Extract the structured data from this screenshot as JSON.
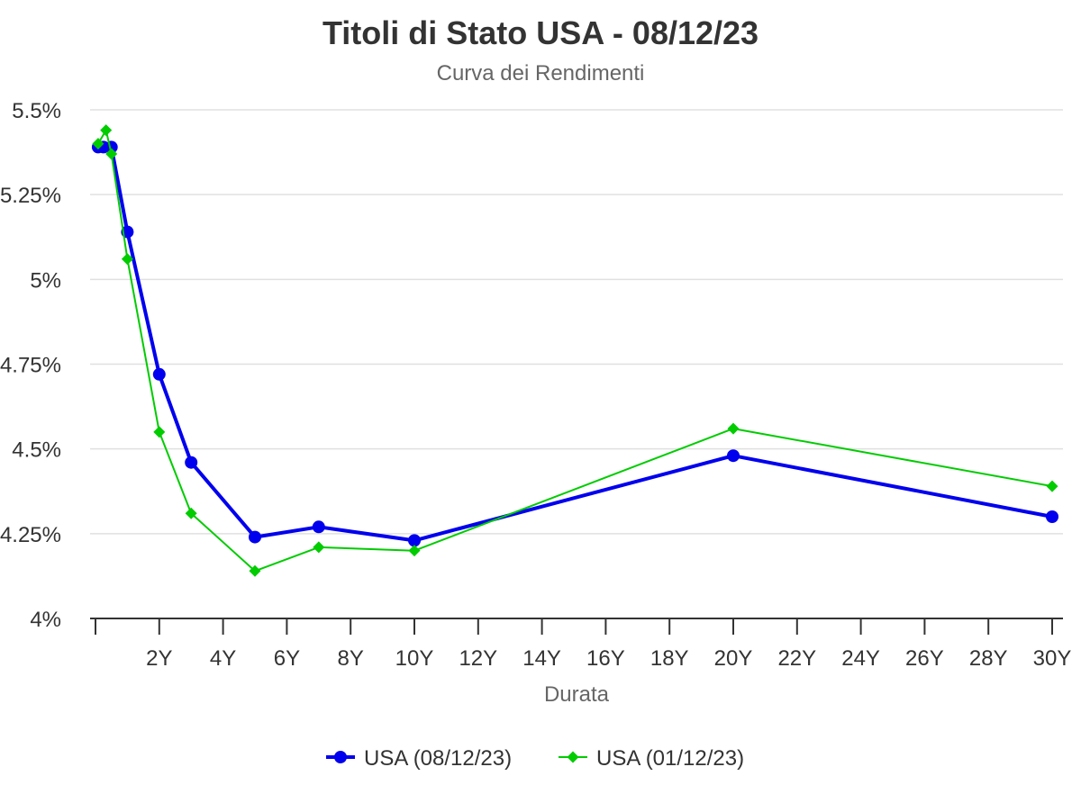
{
  "chart_data": {
    "type": "line",
    "title": "Titoli di Stato USA - 08/12/23",
    "subtitle": "Curva dei Rendimenti",
    "xlabel": "Durata",
    "ylabel": "",
    "xlim": [
      0,
      30
    ],
    "ylim": [
      4,
      5.5
    ],
    "x_ticks": [
      {
        "value": 2,
        "label": "2Y"
      },
      {
        "value": 4,
        "label": "4Y"
      },
      {
        "value": 6,
        "label": "6Y"
      },
      {
        "value": 8,
        "label": "8Y"
      },
      {
        "value": 10,
        "label": "10Y"
      },
      {
        "value": 12,
        "label": "12Y"
      },
      {
        "value": 14,
        "label": "14Y"
      },
      {
        "value": 16,
        "label": "16Y"
      },
      {
        "value": 18,
        "label": "18Y"
      },
      {
        "value": 20,
        "label": "20Y"
      },
      {
        "value": 22,
        "label": "22Y"
      },
      {
        "value": 24,
        "label": "24Y"
      },
      {
        "value": 26,
        "label": "26Y"
      },
      {
        "value": 28,
        "label": "28Y"
      },
      {
        "value": 30,
        "label": "30Y"
      }
    ],
    "y_ticks": [
      {
        "value": 4,
        "label": "4%"
      },
      {
        "value": 4.25,
        "label": "4.25%"
      },
      {
        "value": 4.5,
        "label": "4.5%"
      },
      {
        "value": 4.75,
        "label": "4.75%"
      },
      {
        "value": 5,
        "label": "5%"
      },
      {
        "value": 5.25,
        "label": "5.25%"
      },
      {
        "value": 5.5,
        "label": "5.5%"
      }
    ],
    "grid": "horizontal",
    "legend_position": "bottom-center",
    "series": [
      {
        "name": "USA (08/12/23)",
        "color": "#0000ee",
        "marker": "circle",
        "points": [
          {
            "x": 0.083,
            "y": 5.39
          },
          {
            "x": 0.25,
            "y": 5.39
          },
          {
            "x": 0.5,
            "y": 5.39
          },
          {
            "x": 1,
            "y": 5.14
          },
          {
            "x": 2,
            "y": 4.72
          },
          {
            "x": 3,
            "y": 4.46
          },
          {
            "x": 5,
            "y": 4.24
          },
          {
            "x": 7,
            "y": 4.27
          },
          {
            "x": 10,
            "y": 4.23
          },
          {
            "x": 20,
            "y": 4.48
          },
          {
            "x": 30,
            "y": 4.3
          }
        ]
      },
      {
        "name": "USA (01/12/23)",
        "color": "#00cc00",
        "marker": "diamond",
        "points": [
          {
            "x": 0.083,
            "y": 5.4
          },
          {
            "x": 0.33,
            "y": 5.44
          },
          {
            "x": 0.5,
            "y": 5.37
          },
          {
            "x": 1,
            "y": 5.06
          },
          {
            "x": 2,
            "y": 4.55
          },
          {
            "x": 3,
            "y": 4.31
          },
          {
            "x": 5,
            "y": 4.14
          },
          {
            "x": 7,
            "y": 4.21
          },
          {
            "x": 10,
            "y": 4.2
          },
          {
            "x": 20,
            "y": 4.56
          },
          {
            "x": 30,
            "y": 4.39
          }
        ]
      }
    ]
  }
}
